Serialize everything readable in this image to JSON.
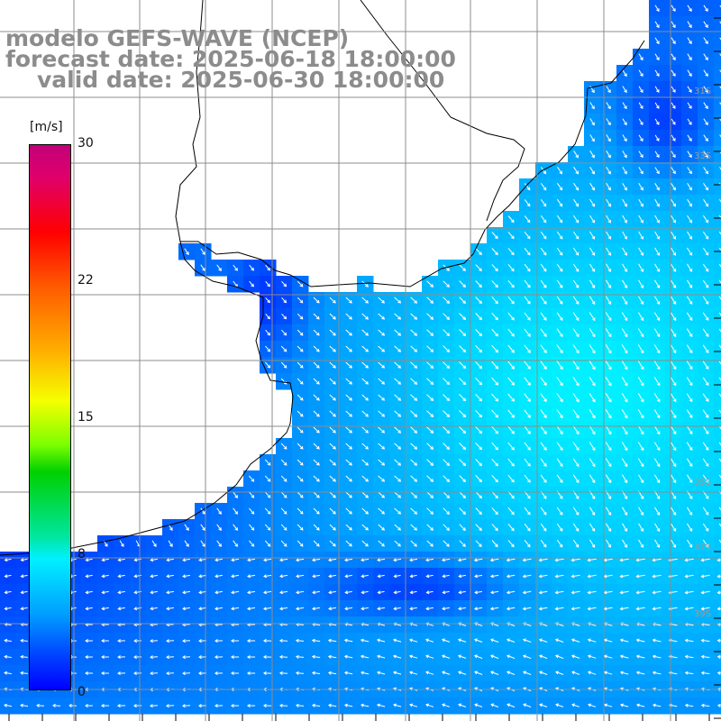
{
  "header": {
    "title": "modelo GEFS-WAVE (NCEP)",
    "forecast": "forecast date: 2025-06-18 18:00:00",
    "valid": "valid date: 2025-06-30 18:00:00"
  },
  "colorbar": {
    "unit": "[m/s]",
    "ticks": [
      "30",
      "22",
      "15",
      "8",
      "0"
    ],
    "range": [
      0,
      30
    ],
    "colors": [
      "#0000ff",
      "#00a0ff",
      "#00f0ff",
      "#00d000",
      "#f5ff00",
      "#ff5a00",
      "#ff0000",
      "#c2007a"
    ]
  },
  "map": {
    "variable": "wind speed and direction",
    "land_color": "#ffffff",
    "grid_color": "#8c8c8c",
    "coast_color": "#000000",
    "lat_labels": [
      "31S",
      "33S",
      "35S",
      "37S",
      "39S"
    ],
    "arrow_color": "#ffffff"
  }
}
